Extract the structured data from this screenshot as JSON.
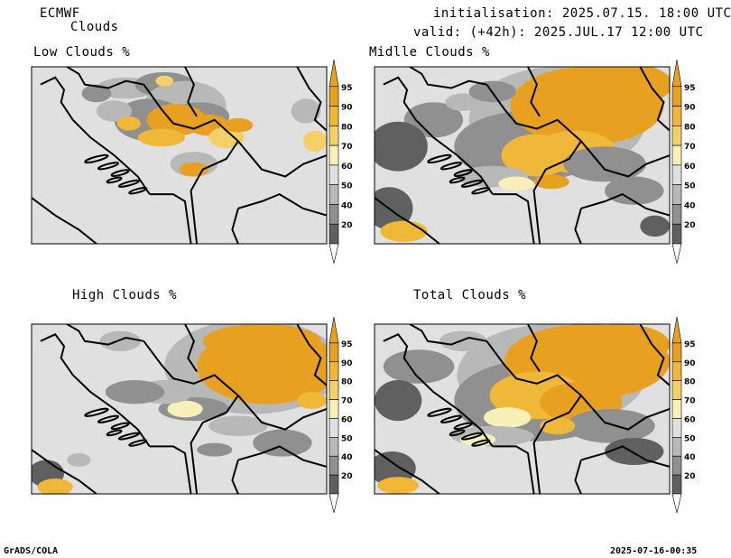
{
  "header": {
    "model": "ECMWF",
    "product": "Clouds",
    "init_line": "initialisation: 2025.07.15. 18:00 UTC",
    "valid_line": "valid: (+42h): 2025.JUL.17 12:00 UTC"
  },
  "panels": [
    {
      "id": "low",
      "title": "Low Clouds %"
    },
    {
      "id": "middle",
      "title": "Midlle Clouds %"
    },
    {
      "id": "high",
      "title": "High Clouds %"
    },
    {
      "id": "total",
      "title": "Total Clouds %"
    }
  ],
  "colorbar": {
    "labels": [
      "95",
      "90",
      "80",
      "70",
      "60",
      "50",
      "40",
      "20"
    ],
    "colors": [
      "#e8a020",
      "#f0b838",
      "#f4d068",
      "#f8f0b8",
      "#e0e0e0",
      "#b8b8b8",
      "#909090",
      "#606060"
    ]
  },
  "footer": {
    "left": "GrADS/COLA",
    "right": "2025-07-16-00:35"
  }
}
